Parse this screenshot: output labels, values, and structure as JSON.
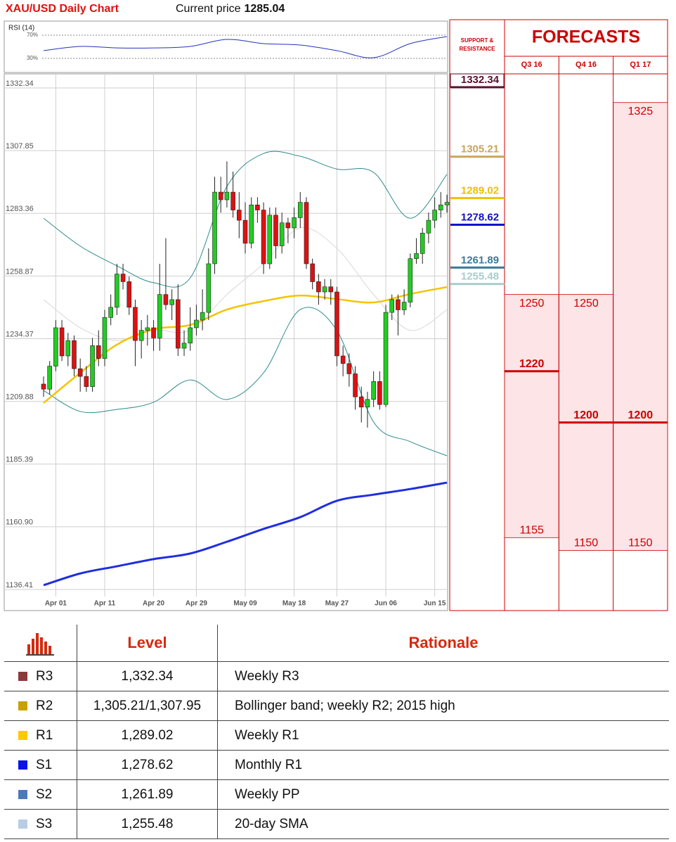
{
  "chart_data": {
    "type": "candlestick",
    "title": "XAU/USD Daily Chart",
    "current_price_label": "Current price",
    "current_price": 1285.04,
    "categories": [
      null,
      null,
      "Apr 01",
      null,
      null,
      null,
      null,
      null,
      null,
      null,
      "Apr 11",
      null,
      null,
      null,
      null,
      null,
      null,
      null,
      "Apr 20",
      null,
      null,
      null,
      null,
      null,
      null,
      "Apr 29",
      null,
      null,
      null,
      null,
      null,
      null,
      null,
      "May 09",
      null,
      null,
      null,
      null,
      null,
      null,
      null,
      "May 18",
      null,
      null,
      null,
      null,
      null,
      null,
      "May 27",
      null,
      null,
      null,
      null,
      null,
      null,
      null,
      "Jun 06",
      null,
      null,
      null,
      null,
      null,
      null,
      null,
      "Jun 15",
      null,
      null
    ],
    "candles": [
      [
        1215,
        1218,
        1210,
        1213
      ],
      [
        1213,
        1224,
        1211,
        1222
      ],
      [
        1222,
        1240,
        1220,
        1237
      ],
      [
        1237,
        1240,
        1224,
        1226
      ],
      [
        1226,
        1235,
        1222,
        1232
      ],
      [
        1232,
        1234,
        1218,
        1221
      ],
      [
        1221,
        1225,
        1212,
        1218
      ],
      [
        1218,
        1222,
        1212,
        1214
      ],
      [
        1214,
        1233,
        1212,
        1230
      ],
      [
        1230,
        1236,
        1222,
        1225
      ],
      [
        1225,
        1244,
        1222,
        1241
      ],
      [
        1241,
        1250,
        1238,
        1245
      ],
      [
        1245,
        1262,
        1242,
        1258
      ],
      [
        1258,
        1262,
        1252,
        1255
      ],
      [
        1255,
        1257,
        1242,
        1245
      ],
      [
        1245,
        1248,
        1222,
        1232
      ],
      [
        1232,
        1240,
        1225,
        1236
      ],
      [
        1236,
        1242,
        1230,
        1237
      ],
      [
        1237,
        1240,
        1228,
        1233
      ],
      [
        1233,
        1262,
        1228,
        1250
      ],
      [
        1250,
        1272,
        1244,
        1246
      ],
      [
        1246,
        1252,
        1240,
        1248
      ],
      [
        1248,
        1254,
        1226,
        1229
      ],
      [
        1229,
        1236,
        1226,
        1231
      ],
      [
        1231,
        1245,
        1228,
        1237
      ],
      [
        1237,
        1246,
        1234,
        1240
      ],
      [
        1240,
        1252,
        1236,
        1243
      ],
      [
        1243,
        1268,
        1240,
        1262
      ],
      [
        1262,
        1296,
        1258,
        1290
      ],
      [
        1290,
        1296,
        1282,
        1287
      ],
      [
        1287,
        1302,
        1284,
        1290
      ],
      [
        1290,
        1298,
        1280,
        1283
      ],
      [
        1283,
        1290,
        1272,
        1279
      ],
      [
        1279,
        1286,
        1266,
        1270
      ],
      [
        1270,
        1288,
        1268,
        1285
      ],
      [
        1285,
        1288,
        1278,
        1283
      ],
      [
        1283,
        1286,
        1258,
        1262
      ],
      [
        1262,
        1284,
        1260,
        1281
      ],
      [
        1281,
        1284,
        1264,
        1269
      ],
      [
        1269,
        1282,
        1266,
        1278
      ],
      [
        1278,
        1280,
        1270,
        1276
      ],
      [
        1276,
        1284,
        1272,
        1280
      ],
      [
        1280,
        1290,
        1276,
        1286
      ],
      [
        1286,
        1288,
        1260,
        1262
      ],
      [
        1262,
        1264,
        1252,
        1255
      ],
      [
        1255,
        1258,
        1246,
        1251
      ],
      [
        1251,
        1256,
        1248,
        1253
      ],
      [
        1253,
        1256,
        1246,
        1251
      ],
      [
        1251,
        1253,
        1222,
        1226
      ],
      [
        1226,
        1230,
        1218,
        1223
      ],
      [
        1223,
        1227,
        1214,
        1219
      ],
      [
        1219,
        1222,
        1205,
        1210
      ],
      [
        1210,
        1214,
        1200,
        1206
      ],
      [
        1206,
        1212,
        1198,
        1209
      ],
      [
        1209,
        1220,
        1206,
        1216
      ],
      [
        1216,
        1220,
        1205,
        1207
      ],
      [
        1207,
        1246,
        1206,
        1243
      ],
      [
        1243,
        1250,
        1240,
        1248
      ],
      [
        1248,
        1250,
        1234,
        1244
      ],
      [
        1244,
        1252,
        1242,
        1247
      ],
      [
        1247,
        1266,
        1245,
        1264
      ],
      [
        1264,
        1272,
        1262,
        1266
      ],
      [
        1266,
        1276,
        1262,
        1274
      ],
      [
        1274,
        1282,
        1270,
        1279
      ],
      [
        1279,
        1288,
        1276,
        1283
      ],
      [
        1283,
        1290,
        1280,
        1285
      ],
      [
        1285,
        1289,
        1282,
        1286
      ]
    ],
    "up_color": "#22cc22",
    "down_color": "#dd1111",
    "series": [
      {
        "color": "#d8d8d8",
        "x": [
          0,
          6,
          12,
          18,
          24,
          30,
          36,
          42,
          48,
          54,
          60,
          66
        ],
        "values": [
          1248,
          1237,
          1232,
          1236,
          1236,
          1250,
          1262,
          1276,
          1268,
          1250,
          1236,
          1244
        ]
      },
      {
        "color": "#2e8b8b",
        "x": [
          0,
          6,
          12,
          18,
          24,
          30,
          36,
          42,
          48,
          54,
          60,
          66
        ],
        "values": [
          1279.8,
          1268.9,
          1261.2,
          1254.6,
          1256.5,
          1292.2,
          1305.1,
          1304,
          1299,
          1297.7,
          1279.8,
          1296.9
        ]
      },
      {
        "color": "#2e8b8b",
        "x": [
          0,
          6,
          12,
          18,
          24,
          30,
          36,
          42,
          48,
          54,
          60,
          66
        ],
        "values": [
          1212.5,
          1204.3,
          1205.1,
          1207.9,
          1216.6,
          1209,
          1219.4,
          1244.1,
          1235.9,
          1200.2,
          1192.5,
          1187
        ]
      },
      {
        "color": "#f5c400",
        "x": [
          0,
          6,
          12,
          18,
          24,
          30,
          36,
          42,
          48,
          54,
          60,
          66
        ],
        "values": [
          1207.6,
          1219.4,
          1230.4,
          1236.4,
          1238.1,
          1244.1,
          1247.4,
          1249.6,
          1248.2,
          1246.9,
          1250.2,
          1252.9
        ]
      },
      {
        "color": "#1f2ee0",
        "x": [
          0,
          6,
          12,
          18,
          24,
          30,
          36,
          42,
          48,
          54,
          60,
          66
        ],
        "values": [
          1136.4,
          1141,
          1143.8,
          1146.6,
          1148.8,
          1153.4,
          1158.4,
          1163,
          1169.4,
          1171.8,
          1174,
          1176.5
        ]
      }
    ],
    "ylim": [
      1126.5,
      1336.2
    ],
    "yticks": [
      1332.34,
      1307.85,
      1283.36,
      1258.87,
      1234.37,
      1209.88,
      1185.39,
      {
        "value": 1160.9,
        "label": "1160.90"
      },
      1136.41
    ],
    "grid": true,
    "rsi": {
      "label": "RSI (14)",
      "color": "#2233bb",
      "x": [
        0,
        6,
        12,
        18,
        24,
        30,
        36,
        42,
        48,
        54,
        60,
        66
      ],
      "values": [
        43.3,
        50.6,
        48,
        48,
        50.6,
        62.7,
        55.5,
        53,
        43.3,
        31.2,
        55.5,
        67.6
      ],
      "ylim": [
        5.8,
        91.8
      ],
      "yticks": [
        {
          "value": 70,
          "label": "70%"
        },
        {
          "value": 30,
          "label": "30%"
        }
      ]
    },
    "support_resistance": {
      "title": [
        "SUPPORT &",
        "RESISTANCE"
      ],
      "levels": [
        {
          "value": 1332.34,
          "color": "#5a1030",
          "boxed": true
        },
        {
          "value": 1305.21,
          "color": "#c8a55a",
          "boxed": false
        },
        {
          "value": 1289.02,
          "color": "#f0c000",
          "boxed": false
        },
        {
          "value": 1278.62,
          "color": "#1010c8",
          "boxed": false
        },
        {
          "value": 1261.89,
          "color": "#3a7a9a",
          "boxed": false
        },
        {
          "value": 1255.48,
          "color": "#a8cccc",
          "boxed": false
        }
      ]
    },
    "forecasts": {
      "title": "FORECASTS",
      "color": "#cc0000",
      "fill": "#fde4e6",
      "quarters": [
        {
          "name": "Q3 16",
          "high": 1250,
          "mid": 1220,
          "low": 1155
        },
        {
          "name": "Q4 16",
          "high": 1250,
          "mid": 1200,
          "low": 1150
        },
        {
          "name": "Q1 17",
          "high": 1325,
          "mid": 1200,
          "low": 1150
        }
      ]
    }
  },
  "table": {
    "headers": [
      "Level",
      "Rationale"
    ],
    "rows": [
      {
        "name": "R3",
        "color": "#8b3a3a",
        "level": "1,332.34",
        "rationale": "Weekly R3"
      },
      {
        "name": "R2",
        "color": "#c8a000",
        "level": "1,305.21/1,307.95",
        "rationale": "Bollinger band; weekly R2; 2015 high"
      },
      {
        "name": "R1",
        "color": "#ffc800",
        "level": "1,289.02",
        "rationale": "Weekly R1"
      },
      {
        "name": "S1",
        "color": "#0a14e6",
        "level": "1,278.62",
        "rationale": "Monthly R1"
      },
      {
        "name": "S2",
        "color": "#4a7ab8",
        "level": "1,261.89",
        "rationale": "Weekly PP"
      },
      {
        "name": "S3",
        "color": "#b8cce4",
        "level": "1,255.48",
        "rationale": "20-day SMA"
      }
    ]
  }
}
